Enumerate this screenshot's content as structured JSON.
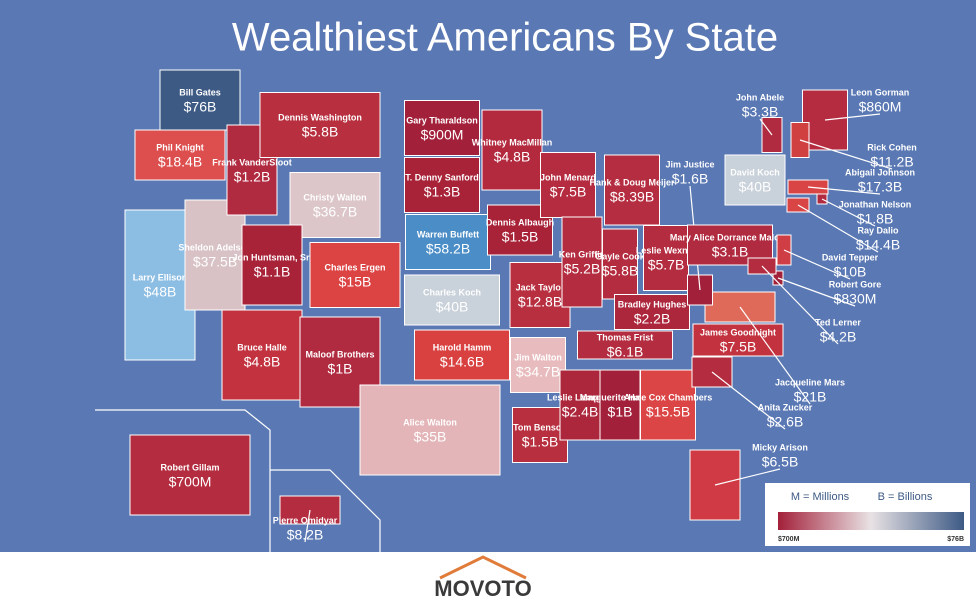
{
  "title": "Wealthiest Americans By State",
  "states": [
    {
      "name": "Bill Gates",
      "worth": "$76B"
    },
    {
      "name": "Phil Knight",
      "worth": "$18.4B"
    },
    {
      "name": "Larry Ellison",
      "worth": "$48B"
    },
    {
      "name": "Sheldon Adelson",
      "worth": "$37.5B"
    },
    {
      "name": "Frank VanderSloot",
      "worth": "$1.2B"
    },
    {
      "name": "Dennis Washington",
      "worth": "$5.8B"
    },
    {
      "name": "Christy Walton",
      "worth": "$36.7B"
    },
    {
      "name": "Jon Huntsman, Sr.",
      "worth": "$1.1B"
    },
    {
      "name": "Charles Ergen",
      "worth": "$15B"
    },
    {
      "name": "Bruce Halle",
      "worth": "$4.8B"
    },
    {
      "name": "Maloof Brothers",
      "worth": "$1B"
    },
    {
      "name": "Gary Tharaldson",
      "worth": "$900M"
    },
    {
      "name": "T. Denny Sanford",
      "worth": "$1.3B"
    },
    {
      "name": "Warren Buffett",
      "worth": "$58.2B"
    },
    {
      "name": "Charles Koch",
      "worth": "$40B"
    },
    {
      "name": "Harold Hamm",
      "worth": "$14.6B"
    },
    {
      "name": "Alice Walton",
      "worth": "$35B"
    },
    {
      "name": "Whitney MacMillan",
      "worth": "$4.8B"
    },
    {
      "name": "Dennis Albaugh",
      "worth": "$1.5B"
    },
    {
      "name": "Jack Taylor",
      "worth": "$12.8B"
    },
    {
      "name": "Jim Walton",
      "worth": "$34.7B"
    },
    {
      "name": "Tom Benson",
      "worth": "$1.5B"
    },
    {
      "name": "John Menard",
      "worth": "$7.5B"
    },
    {
      "name": "Ken Griffin",
      "worth": "$5.2B"
    },
    {
      "name": "Hank & Doug Meijer",
      "worth": "$8.39B"
    },
    {
      "name": "Gayle Cook",
      "worth": "$5.8B"
    },
    {
      "name": "Leslie Wexner",
      "worth": "$5.7B"
    },
    {
      "name": "Bradley Hughes",
      "worth": "$2.2B"
    },
    {
      "name": "Thomas Frist",
      "worth": "$6.1B"
    },
    {
      "name": "Leslie Lampton",
      "worth": "$2.4B"
    },
    {
      "name": "Marguerite Harbert",
      "worth": "$1B"
    },
    {
      "name": "Anne Cox Chambers",
      "worth": "$15.5B"
    },
    {
      "name": "Micky Arison",
      "worth": "$6.5B"
    },
    {
      "name": "Anita Zucker",
      "worth": "$2.6B"
    },
    {
      "name": "James Goodnight",
      "worth": "$7.5B"
    },
    {
      "name": "Jacqueline Mars",
      "worth": "$21B"
    },
    {
      "name": "Jim Justice",
      "worth": "$1.6B"
    },
    {
      "name": "Mary Alice Dorrance Malone",
      "worth": "$3.1B"
    },
    {
      "name": "David Koch",
      "worth": "$40B"
    },
    {
      "name": "John Abele",
      "worth": "$3.3B"
    },
    {
      "name": "Leon Gorman",
      "worth": "$860M"
    },
    {
      "name": "Rick Cohen",
      "worth": "$11.2B"
    },
    {
      "name": "Abigail Johnson",
      "worth": "$17.3B"
    },
    {
      "name": "Jonathan Nelson",
      "worth": "$1.8B"
    },
    {
      "name": "Ray Dalio",
      "worth": "$14.4B"
    },
    {
      "name": "David Tepper",
      "worth": "$10B"
    },
    {
      "name": "Robert Gore",
      "worth": "$830M"
    },
    {
      "name": "Ted Lerner",
      "worth": "$4.2B"
    },
    {
      "name": "Robert Gillam",
      "worth": "$700M"
    },
    {
      "name": "Pierre Omidyar",
      "worth": "$8.2B"
    }
  ],
  "legend": {
    "millions": "M = Millions",
    "billions": "B = Billions",
    "min": "$700M",
    "max": "$76B"
  },
  "brand": "MOVOTO"
}
